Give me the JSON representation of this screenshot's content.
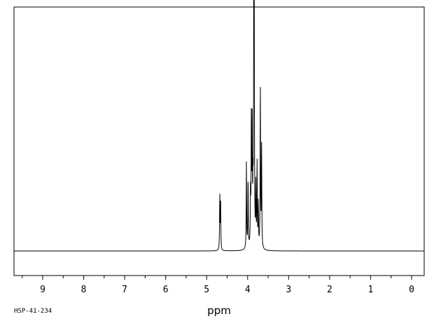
{
  "sample_id": "HSP-41-234",
  "chart_data": {
    "type": "line",
    "xlabel": "ppm",
    "ylabel": "",
    "title": "",
    "x_reversed": true,
    "xlim": [
      9.65,
      -0.3
    ],
    "ylim": [
      -0.1,
      1.0
    ],
    "grid": false,
    "line_color": "#000000",
    "baseline": 0,
    "major_ticks": [
      9,
      8,
      7,
      6,
      5,
      4,
      3,
      2,
      1,
      0
    ],
    "minor_tick_step": 0.5,
    "tick_labels": [
      "9",
      "8",
      "7",
      "6",
      "5",
      "4",
      "3",
      "2",
      "1",
      "0"
    ],
    "peaks": [
      {
        "ppm": 4.68,
        "height": 0.23
      },
      {
        "ppm": 4.66,
        "height": 0.22
      },
      {
        "ppm": 4.03,
        "height": 0.37
      },
      {
        "ppm": 3.99,
        "height": 0.3
      },
      {
        "ppm": 3.93,
        "height": 0.23
      },
      {
        "ppm": 3.91,
        "height": 0.53
      },
      {
        "ppm": 3.89,
        "height": 0.5
      },
      {
        "ppm": 3.87,
        "height": 0.22
      },
      {
        "ppm": 3.85,
        "height": 0.96
      },
      {
        "ppm": 3.84,
        "height": 0.93
      },
      {
        "ppm": 3.8,
        "height": 0.25
      },
      {
        "ppm": 3.77,
        "height": 0.35
      },
      {
        "ppm": 3.74,
        "height": 0.18
      },
      {
        "ppm": 3.69,
        "height": 0.7
      },
      {
        "ppm": 3.66,
        "height": 0.45
      }
    ]
  }
}
